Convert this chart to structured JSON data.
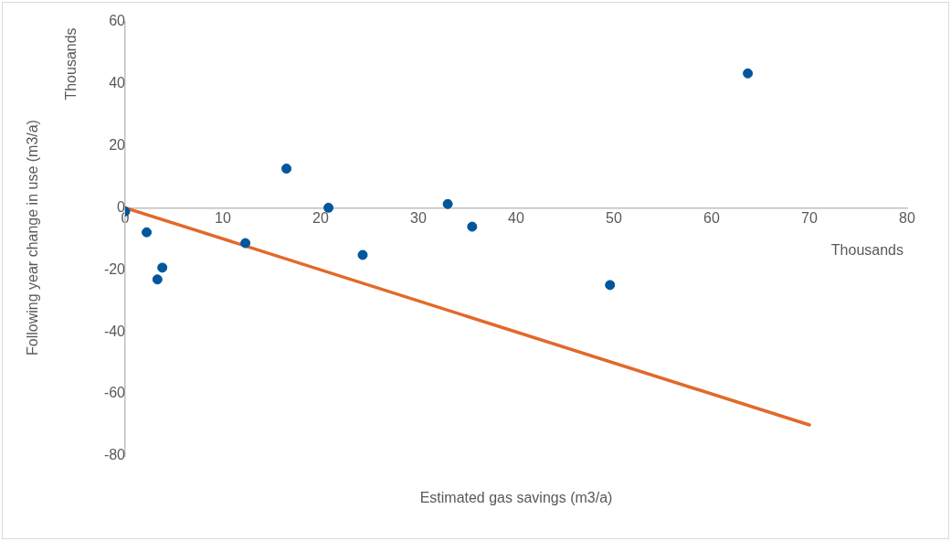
{
  "chart_data": {
    "type": "scatter",
    "xlabel": "Estimated gas savings (m3/a)",
    "ylabel": "Following year change in use (m3/a)",
    "annotations": [
      "Thousands",
      "Thousands"
    ],
    "xlim": [
      0,
      80
    ],
    "xticks": [
      0,
      10,
      20,
      30,
      40,
      50,
      60,
      70,
      80
    ],
    "ylim": [
      -80,
      60
    ],
    "yticks": [
      -80,
      -60,
      -40,
      -20,
      0,
      20,
      40,
      60
    ],
    "grid": false,
    "legend": false,
    "marker": "circle",
    "series": [
      {
        "color": "#02569b",
        "x": [
          0,
          2.2,
          3.3,
          3.8,
          12.3,
          16.5,
          20.8,
          24.3,
          33,
          35.5,
          49.6,
          63.7
        ],
        "values": [
          -1.2,
          -7.9,
          -23.1,
          -19.3,
          -11.4,
          12.6,
          0,
          -15.2,
          1.2,
          -6.1,
          -24.9,
          43.3
        ]
      },
      {
        "type": "line",
        "marker": "none",
        "color": "#e2692a",
        "x": [
          0,
          70
        ],
        "values": [
          0,
          -70
        ]
      }
    ]
  }
}
